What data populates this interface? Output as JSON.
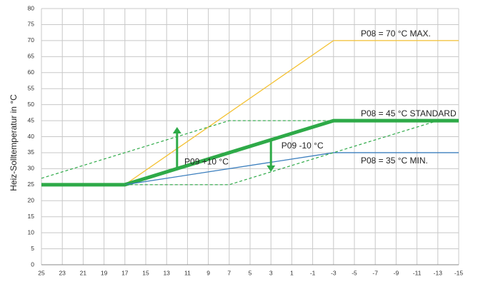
{
  "chart_data": {
    "type": "line",
    "y_label": "Heiz-Solltemperatur in °C",
    "xlim": [
      25,
      -15
    ],
    "xticks": [
      25,
      23,
      21,
      19,
      17,
      15,
      13,
      11,
      9,
      7,
      5,
      3,
      1,
      -1,
      -3,
      -5,
      -7,
      -9,
      -11,
      -13,
      -15
    ],
    "ylim": [
      0,
      80
    ],
    "yticks": [
      0,
      5,
      10,
      15,
      20,
      25,
      30,
      35,
      40,
      45,
      50,
      55,
      60,
      65,
      70,
      75,
      80
    ],
    "grid": true,
    "series": [
      {
        "name": "P08 = 70 °C MAX.",
        "color": "#f4c234",
        "x": [
          17,
          -3,
          -15
        ],
        "values": [
          25,
          70,
          70
        ]
      },
      {
        "name": "P08 = 45 °C STANDARD",
        "color": "#2eaa48",
        "x": [
          25,
          17,
          -3,
          -15
        ],
        "values": [
          25,
          25,
          45,
          45
        ]
      },
      {
        "name": "P08 = 35 °C MIN.",
        "color": "#3c7fbe",
        "x": [
          17,
          -3,
          -15
        ],
        "values": [
          25,
          35,
          35
        ]
      },
      {
        "color": "#2eaa48",
        "dashed": true,
        "x": [
          25,
          7,
          -3
        ],
        "values": [
          27,
          45,
          45
        ]
      },
      {
        "color": "#2eaa48",
        "dashed": true,
        "x": [
          17,
          7,
          -13
        ],
        "values": [
          25,
          25,
          45
        ]
      }
    ],
    "arrows": [
      {
        "color": "#2eaa48",
        "x": 12,
        "from": 30,
        "to": 43
      },
      {
        "color": "#2eaa48",
        "x": 3,
        "from": 39,
        "to": 29
      }
    ],
    "annotations": [
      {
        "text": "P09 +10 °C",
        "x": 11.3,
        "y": 32
      },
      {
        "text": "P09 -10 °C",
        "x": 2,
        "y": 37
      }
    ]
  }
}
